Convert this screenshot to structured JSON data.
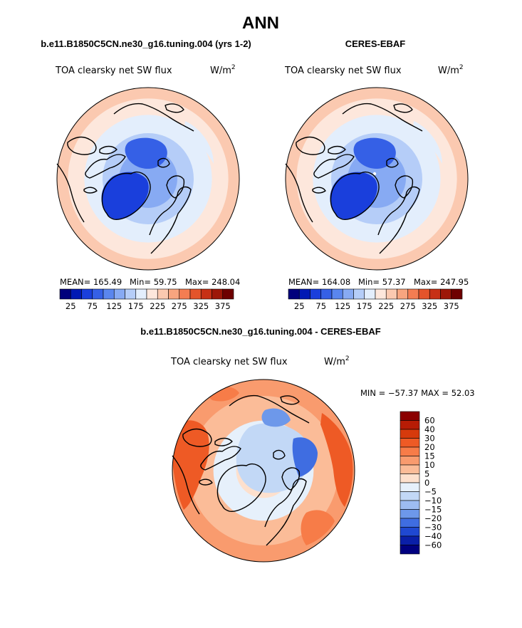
{
  "page": {
    "title": "ANN"
  },
  "colors": {
    "coast": "#000000",
    "outline": "#000000",
    "background": "#ffffff"
  },
  "panels": [
    {
      "heading": "b.e11.B1850C5CN.ne30_g16.tuning.004 (yrs 1-2)",
      "variable": "TOA clearsky net SW flux",
      "units_base": "W/m",
      "units_exp": "2",
      "stats": {
        "mean": "MEAN= 165.49",
        "min": "Min= 59.75",
        "max": "Max= 248.04"
      }
    },
    {
      "heading": "CERES-EBAF",
      "variable": "TOA clearsky net SW flux",
      "units_base": "W/m",
      "units_exp": "2",
      "stats": {
        "mean": "MEAN= 164.08",
        "min": "Min= 57.37",
        "max": "Max= 247.95"
      }
    },
    {
      "heading": "b.e11.B1850C5CN.ne30_g16.tuning.004 - CERES-EBAF",
      "variable": "TOA clearsky net SW flux",
      "units_base": "W/m",
      "units_exp": "2",
      "stats": {
        "minmax": "MIN = −57.37 MAX =  52.03"
      }
    }
  ],
  "chart_data": [
    {
      "type": "heatmap",
      "projection": "polar-stereographic-north",
      "title": "TOA clearsky net SW flux",
      "units": "W/m2",
      "stats": {
        "mean": 165.49,
        "min": 59.75,
        "max": 248.04
      },
      "colorbar": {
        "orientation": "horizontal",
        "tick_labels": [
          "25",
          "75",
          "125",
          "175",
          "225",
          "275",
          "325",
          "375"
        ],
        "colors": [
          "#00007c",
          "#0019b4",
          "#1a3fdc",
          "#3560e6",
          "#5a86ee",
          "#87aaf3",
          "#b5cdf8",
          "#e3eefc",
          "#fde7dc",
          "#fbc9b0",
          "#f8a57f",
          "#f47d52",
          "#e4542b",
          "#c73015",
          "#9d1708",
          "#6e0000"
        ]
      },
      "field_rings": [
        {
          "r_fraction": 1.0,
          "level": 225
        },
        {
          "r_fraction": 0.88,
          "level": 200
        },
        {
          "r_fraction": 0.7,
          "level": 175
        },
        {
          "r_fraction": 0.5,
          "level": 150
        },
        {
          "r_fraction": 0.32,
          "level": 125
        }
      ]
    },
    {
      "type": "heatmap",
      "projection": "polar-stereographic-north",
      "title": "TOA clearsky net SW flux",
      "units": "W/m2",
      "stats": {
        "mean": 164.08,
        "min": 57.37,
        "max": 247.95
      },
      "colorbar": {
        "orientation": "horizontal",
        "tick_labels": [
          "25",
          "75",
          "125",
          "175",
          "225",
          "275",
          "325",
          "375"
        ],
        "colors": [
          "#00007c",
          "#0019b4",
          "#1a3fdc",
          "#3560e6",
          "#5a86ee",
          "#87aaf3",
          "#b5cdf8",
          "#e3eefc",
          "#fde7dc",
          "#fbc9b0",
          "#f8a57f",
          "#f47d52",
          "#e4542b",
          "#c73015",
          "#9d1708",
          "#6e0000"
        ]
      },
      "field_rings": [
        {
          "r_fraction": 1.0,
          "level": 225
        },
        {
          "r_fraction": 0.88,
          "level": 200
        },
        {
          "r_fraction": 0.7,
          "level": 175
        },
        {
          "r_fraction": 0.5,
          "level": 150
        },
        {
          "r_fraction": 0.32,
          "level": 125
        }
      ]
    },
    {
      "type": "heatmap",
      "projection": "polar-stereographic-north",
      "title": "TOA clearsky net SW flux",
      "units": "W/m2",
      "stats": {
        "min": -57.37,
        "max": 52.03
      },
      "colorbar": {
        "orientation": "vertical",
        "tick_labels": [
          "60",
          "40",
          "30",
          "20",
          "15",
          "10",
          "5",
          "0",
          "−5",
          "−10",
          "−15",
          "−20",
          "−30",
          "−40",
          "−60"
        ],
        "colors": [
          "#8b0000",
          "#b71c05",
          "#d63a0c",
          "#ee5a25",
          "#f77c48",
          "#f99b6e",
          "#fbbc98",
          "#fde0cd",
          "#e6f0fb",
          "#c2d8f6",
          "#9dbcf1",
          "#6d98ea",
          "#3f6de1",
          "#1f48d1",
          "#0a1fa8",
          "#000080"
        ]
      },
      "field_rings": [
        {
          "r_fraction": 1.0,
          "level": 10
        },
        {
          "r_fraction": 0.82,
          "level": 5
        },
        {
          "r_fraction": 0.55,
          "level": -5
        },
        {
          "r_fraction": 0.3,
          "level": 0
        }
      ]
    }
  ]
}
